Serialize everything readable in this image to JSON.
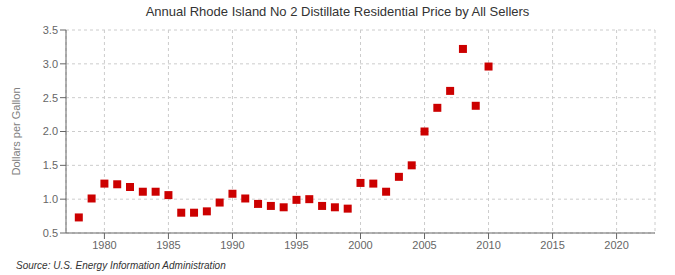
{
  "chart_data": {
    "type": "scatter",
    "title": "Annual Rhode Island No 2 Distillate Residential Price by All Sellers",
    "ylabel": "Dollars per Gallon",
    "source": "Source: U.S. Energy Information Administration",
    "color": "#cc0000",
    "marker": "square",
    "grid": true,
    "xlim": [
      1977,
      2023
    ],
    "ylim": [
      0.5,
      3.5
    ],
    "xticks": [
      1980,
      1985,
      1990,
      1995,
      2000,
      2005,
      2010,
      2015,
      2020
    ],
    "yticks": [
      0.5,
      {
        "value": 1.0,
        "label": "1.0"
      },
      1.5,
      {
        "value": 2.0,
        "label": "2.0"
      },
      2.5,
      {
        "value": 3.0,
        "label": "3.0"
      },
      3.5
    ],
    "x": [
      1978,
      1979,
      1980,
      1981,
      1982,
      1983,
      1984,
      1985,
      1986,
      1987,
      1988,
      1989,
      1990,
      1991,
      1992,
      1993,
      1994,
      1995,
      1996,
      1997,
      1998,
      1999,
      2000,
      2001,
      2002,
      2003,
      2004,
      2005,
      2006,
      2007,
      2008,
      2009,
      2010
    ],
    "values": [
      0.73,
      1.01,
      1.23,
      1.22,
      1.18,
      1.11,
      1.11,
      1.06,
      0.8,
      0.8,
      0.82,
      0.95,
      1.08,
      1.01,
      0.93,
      0.9,
      0.88,
      0.99,
      1.0,
      0.9,
      0.88,
      0.86,
      1.24,
      1.23,
      1.11,
      1.33,
      1.5,
      2.0,
      2.35,
      2.6,
      3.22,
      2.38,
      2.96
    ]
  }
}
